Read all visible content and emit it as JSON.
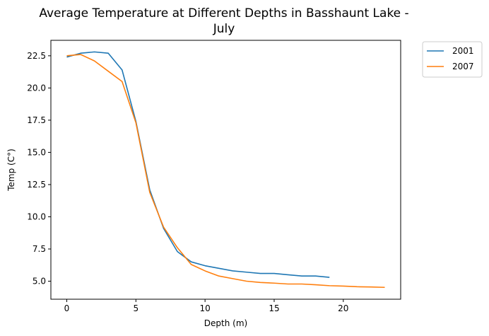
{
  "chart_data": {
    "type": "line",
    "title_lines": [
      "Average Temperature at Different Depths in Basshaunt Lake -",
      "July"
    ],
    "xlabel": "Depth (m)",
    "ylabel": "Temp (C°)",
    "xlim": [
      -1.15,
      24.15
    ],
    "ylim": [
      3.6,
      23.7
    ],
    "xticks": [
      0,
      5,
      10,
      15,
      20
    ],
    "yticks": [
      5.0,
      7.5,
      10.0,
      12.5,
      15.0,
      17.5,
      20.0,
      22.5
    ],
    "xtick_labels": [
      "0",
      "5",
      "10",
      "15",
      "20"
    ],
    "ytick_labels": [
      "5.0",
      "7.5",
      "10.0",
      "12.5",
      "15.0",
      "17.5",
      "20.0",
      "22.5"
    ],
    "grid": false,
    "legend_position": "outside top-right",
    "series": [
      {
        "name": "2001",
        "color": "#1f77b4",
        "x": [
          0,
          1,
          2,
          3,
          4,
          5,
          6,
          7,
          8,
          9,
          10,
          11,
          12,
          13,
          14,
          15,
          16,
          17,
          18,
          19
        ],
        "y": [
          22.4,
          22.7,
          22.8,
          22.7,
          21.4,
          17.4,
          12.1,
          9.1,
          7.3,
          6.5,
          6.2,
          6.0,
          5.8,
          5.7,
          5.6,
          5.6,
          5.5,
          5.4,
          5.4,
          5.3
        ]
      },
      {
        "name": "2007",
        "color": "#ff7f0e",
        "x": [
          0,
          1,
          2,
          3,
          4,
          5,
          6,
          7,
          8,
          9,
          10,
          11,
          12,
          13,
          14,
          15,
          16,
          17,
          18,
          19,
          20,
          21,
          22,
          23
        ],
        "y": [
          22.5,
          22.6,
          22.1,
          21.3,
          20.5,
          17.3,
          11.9,
          9.2,
          7.6,
          6.3,
          5.8,
          5.4,
          5.2,
          5.0,
          4.9,
          4.85,
          4.78,
          4.78,
          4.72,
          4.65,
          4.62,
          4.57,
          4.55,
          4.52
        ]
      }
    ]
  }
}
